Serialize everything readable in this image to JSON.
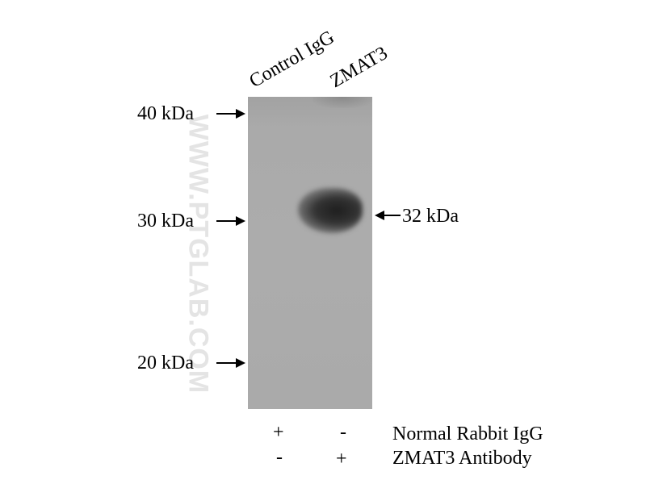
{
  "watermark": "WWW.PTGLAB.COM",
  "lanes": [
    "Control IgG",
    "ZMAT3"
  ],
  "markers": [
    "40 kDa",
    "30 kDa",
    "20 kDa"
  ],
  "band_label": "32 kDa",
  "conditions": [
    {
      "label": "Normal Rabbit IgG",
      "lane1": "+",
      "lane2": "-"
    },
    {
      "label": "ZMAT3 Antibody",
      "lane1": "-",
      "lane2": "+"
    }
  ]
}
